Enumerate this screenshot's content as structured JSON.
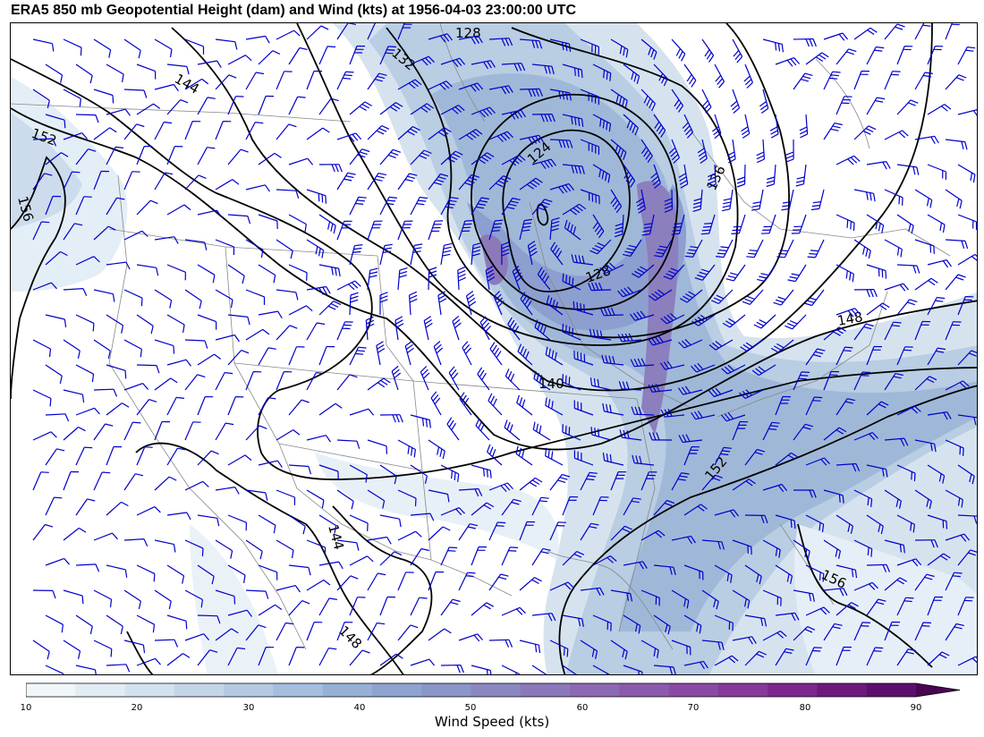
{
  "title": "ERA5 850 mb Geopotential Height (dam) and Wind (kts) at 1956-04-03 23:00:00 UTC",
  "colorbar": {
    "label": "Wind Speed (kts)",
    "ticks": [
      "10",
      "20",
      "30",
      "40",
      "50",
      "60",
      "70",
      "80",
      "90"
    ],
    "colors": [
      "#f0f6fa",
      "#e1ecf4",
      "#d2e2ee",
      "#c3d6e9",
      "#b4cae3",
      "#a5bedd",
      "#97b0d6",
      "#8ea3cf",
      "#8a95c8",
      "#8a87c1",
      "#8b78ba",
      "#8c69b3",
      "#8c5aac",
      "#8a4aa4",
      "#87389b",
      "#7d268e",
      "#6e187e",
      "#5d0e6d"
    ]
  },
  "contours": {
    "labels": [
      "128",
      "132",
      "144",
      "152",
      "156",
      "124",
      "136",
      "128",
      "148",
      "140",
      "152",
      "144",
      "156",
      "148"
    ],
    "color": "#000000"
  },
  "wind": {
    "barb_color": "#0000cc"
  }
}
